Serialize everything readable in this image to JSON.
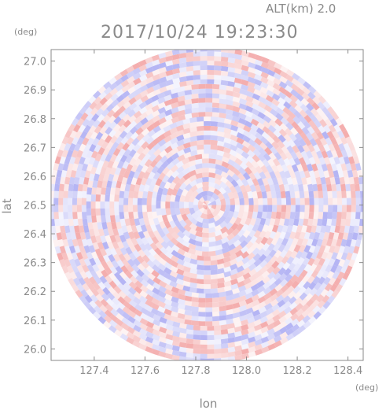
{
  "chart_data": {
    "type": "heatmap",
    "title": "2017/10/24 19:23:30",
    "annotation": "ALT(km) 2.0",
    "xlabel": "lon",
    "ylabel": "lat",
    "xunit": "(deg)",
    "yunit": "(deg)",
    "xlim": [
      127.23,
      128.46
    ],
    "ylim": [
      25.96,
      27.04
    ],
    "xticks": [
      127.4,
      127.6,
      127.8,
      128.0,
      128.2,
      128.4
    ],
    "xtick_labels": [
      "127.4",
      "127.6",
      "127.8",
      "128.0",
      "128.2",
      "128.4"
    ],
    "yticks": [
      26.0,
      26.1,
      26.2,
      26.3,
      26.4,
      26.5,
      26.6,
      26.7,
      26.8,
      26.9,
      27.0
    ],
    "ytick_labels": [
      "26.0",
      "26.1",
      "26.2",
      "26.3",
      "26.4",
      "26.5",
      "26.6",
      "26.7",
      "26.8",
      "26.9",
      "27.0"
    ],
    "center": {
      "lon": 127.845,
      "lat": 26.5
    },
    "radius_deg_lat": 0.55,
    "colors": {
      "positive": "#f2a0a0",
      "negative": "#a8a8f2",
      "axis": "#8a8a8a"
    },
    "grid": false
  }
}
